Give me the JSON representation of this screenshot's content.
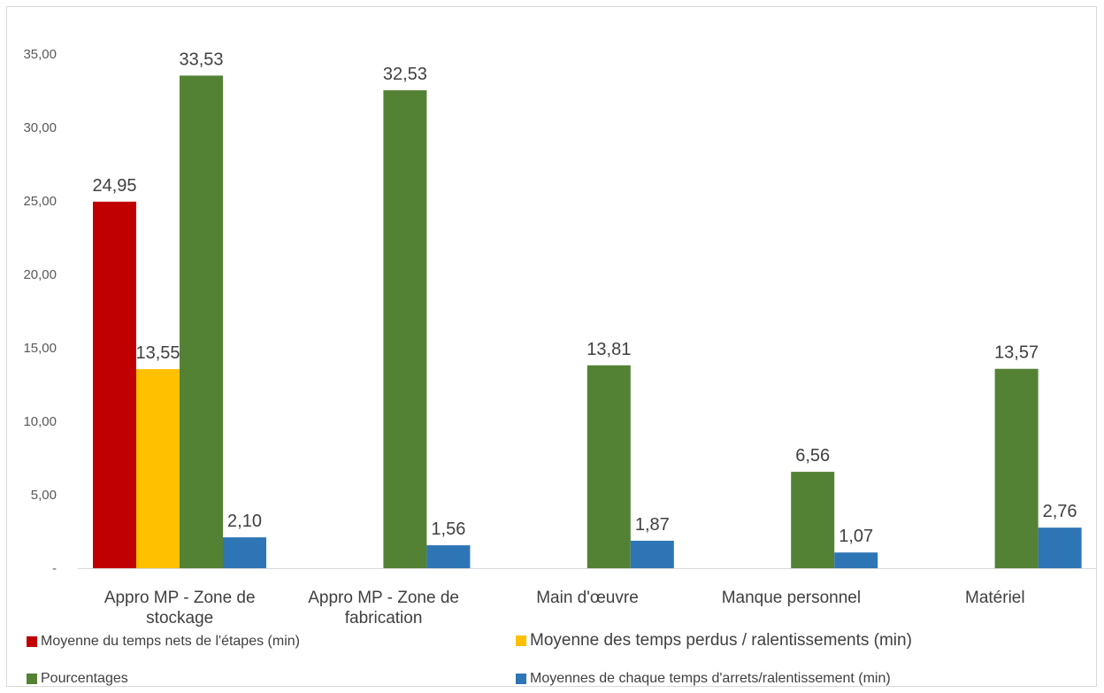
{
  "chart_data": {
    "type": "bar",
    "categories": [
      [
        "Appro MP - Zone de",
        "stockage"
      ],
      [
        "Appro MP - Zone de",
        "fabrication"
      ],
      [
        "Main d'œuvre"
      ],
      [
        "Manque personnel"
      ],
      [
        "Matériel"
      ]
    ],
    "series": [
      {
        "name": "Moyenne du temps nets de l'étapes (min)",
        "color": "#c00000",
        "values": [
          24.95,
          null,
          null,
          null,
          null
        ],
        "labels": [
          "24,95",
          null,
          null,
          null,
          null
        ]
      },
      {
        "name": "Moyenne des temps perdus / ralentissements (min)",
        "color": "#ffc000",
        "values": [
          13.55,
          null,
          null,
          null,
          null
        ],
        "labels": [
          "13,55",
          null,
          null,
          null,
          null
        ]
      },
      {
        "name": "Pourcentages",
        "color": "#548235",
        "values": [
          33.53,
          32.53,
          13.81,
          6.56,
          13.57
        ],
        "labels": [
          "33,53",
          "32,53",
          "13,81",
          "6,56",
          "13,57"
        ]
      },
      {
        "name": "Moyennes de chaque temps d'arrets/ralentissement (min)",
        "color": "#2e75b6",
        "values": [
          2.1,
          1.56,
          1.87,
          1.07,
          2.76
        ],
        "labels": [
          "2,10",
          "1,56",
          "1,87",
          "1,07",
          "2,76"
        ]
      }
    ],
    "y_ticks": [
      {
        "value": 0,
        "label": "-"
      },
      {
        "value": 5,
        "label": "5,00"
      },
      {
        "value": 10,
        "label": "10,00"
      },
      {
        "value": 15,
        "label": "15,00"
      },
      {
        "value": 20,
        "label": "20,00"
      },
      {
        "value": 25,
        "label": "25,00"
      },
      {
        "value": 30,
        "label": "30,00"
      },
      {
        "value": 35,
        "label": "35,00"
      }
    ],
    "ylim": [
      0,
      35
    ],
    "grid": false,
    "legend_position": "bottom"
  }
}
